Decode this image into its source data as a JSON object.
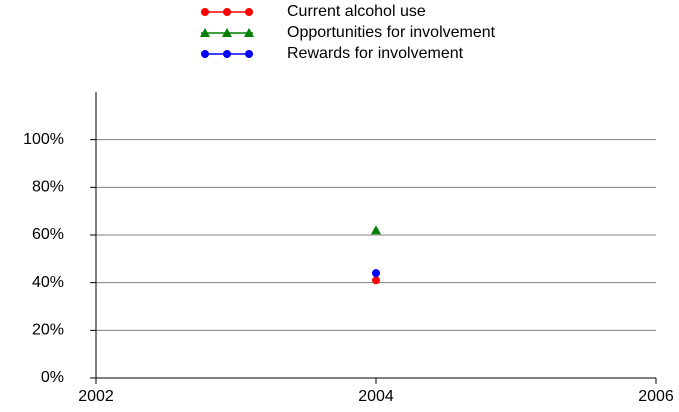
{
  "chart_data": {
    "type": "line",
    "x": [
      2004
    ],
    "series": [
      {
        "name": "Current alcohol use",
        "color": "#ff0000",
        "marker": "circle",
        "values": [
          41
        ]
      },
      {
        "name": "Opportunities for involvement",
        "color": "#008000",
        "marker": "triangle",
        "values": [
          62
        ]
      },
      {
        "name": "Rewards for involvement",
        "color": "#0000ff",
        "marker": "circle",
        "values": [
          44
        ]
      }
    ],
    "xlim": [
      2002,
      2006
    ],
    "xticks": [
      2002,
      2004,
      2006
    ],
    "ylim": [
      0,
      120
    ],
    "yticks": [
      {
        "value": 0,
        "label": "0%"
      },
      {
        "value": 20,
        "label": "20%"
      },
      {
        "value": 40,
        "label": "40%"
      },
      {
        "value": 60,
        "label": "60%"
      },
      {
        "value": 80,
        "label": "80%"
      },
      {
        "value": 100,
        "label": "100%"
      }
    ],
    "grid": true,
    "legend": "top"
  }
}
